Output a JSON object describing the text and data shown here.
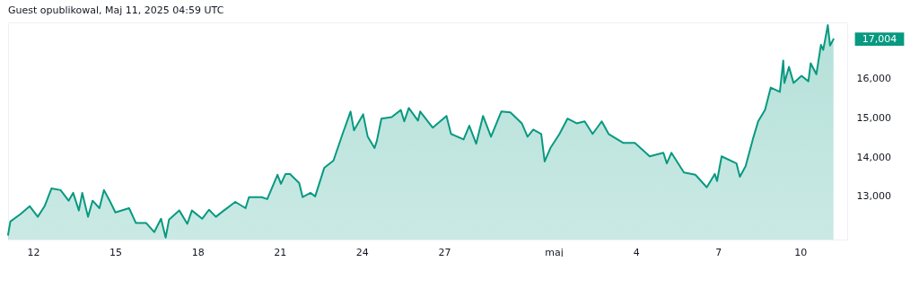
{
  "chart_data": {
    "type": "area",
    "title": "Guest opublikowal, Maj 11, 2025 04:59 UTC",
    "x": [
      "2025-04-11T02:00",
      "2025-04-11T04:00",
      "2025-04-11T13:00",
      "2025-04-11T21:00",
      "2025-04-12T04:00",
      "2025-04-12T10:00",
      "2025-04-12T16:00",
      "2025-04-13T00:00",
      "2025-04-13T07:00",
      "2025-04-13T11:00",
      "2025-04-13T16:00",
      "2025-04-13T19:00",
      "2025-04-14T00:00",
      "2025-04-14T04:00",
      "2025-04-14T10:00",
      "2025-04-14T14:00",
      "2025-04-14T19:00",
      "2025-04-15T00:00",
      "2025-04-15T12:00",
      "2025-04-15T18:00",
      "2025-04-16T03:00",
      "2025-04-16T10:00",
      "2025-04-16T16:00",
      "2025-04-16T20:00",
      "2025-04-16T23:00",
      "2025-04-17T08:00",
      "2025-04-17T15:00",
      "2025-04-17T19:00",
      "2025-04-18T04:00",
      "2025-04-18T10:00",
      "2025-04-18T16:00",
      "2025-04-18T23:00",
      "2025-04-19T09:00",
      "2025-04-19T18:00",
      "2025-04-19T21:00",
      "2025-04-20T08:00",
      "2025-04-20T13:00",
      "2025-04-20T22:00",
      "2025-04-21T01:00",
      "2025-04-21T05:00",
      "2025-04-21T09:00",
      "2025-04-21T17:00",
      "2025-04-21T20:00",
      "2025-04-22T03:00",
      "2025-04-22T07:00",
      "2025-04-22T15:00",
      "2025-04-22T23:00",
      "2025-04-23T07:00",
      "2025-04-23T14:00",
      "2025-04-23T17:00",
      "2025-04-24T01:00",
      "2025-04-24T05:00",
      "2025-04-24T11:00",
      "2025-04-24T13:00",
      "2025-04-24T17:00",
      "2025-04-25T02:00",
      "2025-04-25T10:00",
      "2025-04-25T13:00",
      "2025-04-25T17:00",
      "2025-04-26T01:00",
      "2025-04-26T03:00",
      "2025-04-26T14:00",
      "2025-04-27T02:00",
      "2025-04-27T06:00",
      "2025-04-27T17:00",
      "2025-04-27T22:00",
      "2025-04-28T04:00",
      "2025-04-28T10:00",
      "2025-04-28T17:00",
      "2025-04-29T02:00",
      "2025-04-29T10:00",
      "2025-04-29T20:00",
      "2025-04-30T01:00",
      "2025-04-30T06:00",
      "2025-04-30T13:00",
      "2025-04-30T16:00",
      "2025-04-30T21:00",
      "2025-05-01T05:00",
      "2025-05-01T12:00",
      "2025-05-01T20:00",
      "2025-05-02T03:00",
      "2025-05-02T10:00",
      "2025-05-02T18:00",
      "2025-05-03T00:00",
      "2025-05-03T13:00",
      "2025-05-03T23:00",
      "2025-05-04T12:00",
      "2025-05-05T00:00",
      "2025-05-05T03:00",
      "2025-05-05T07:00",
      "2025-05-05T18:00",
      "2025-05-06T04:00",
      "2025-05-06T14:00",
      "2025-05-06T21:00",
      "2025-05-06T23:00",
      "2025-05-07T03:00",
      "2025-05-07T16:00",
      "2025-05-07T19:00",
      "2025-05-08T00:00",
      "2025-05-08T07:00",
      "2025-05-08T11:00",
      "2025-05-08T17:00",
      "2025-05-08T22:00",
      "2025-05-09T06:00",
      "2025-05-09T09:00",
      "2025-05-09T10:00",
      "2025-05-09T14:00",
      "2025-05-09T18:00",
      "2025-05-10T01:00",
      "2025-05-10T07:00",
      "2025-05-10T09:00",
      "2025-05-10T14:00",
      "2025-05-10T18:00",
      "2025-05-10T20:00",
      "2025-05-11T00:00",
      "2025-05-11T02:00",
      "2025-05-11T05:00"
    ],
    "series": [
      {
        "color": "#089981",
        "values": [
          12020,
          12360,
          12550,
          12750,
          12480,
          12750,
          13200,
          13160,
          12890,
          13090,
          12640,
          13090,
          12480,
          12890,
          12700,
          13160,
          12890,
          12590,
          12700,
          12320,
          12320,
          12090,
          12430,
          11950,
          12410,
          12640,
          12300,
          12640,
          12430,
          12660,
          12480,
          12640,
          12860,
          12700,
          12980,
          12980,
          12930,
          13550,
          13320,
          13570,
          13570,
          13340,
          12980,
          13090,
          13000,
          13730,
          13910,
          14590,
          15160,
          14680,
          15090,
          14520,
          14230,
          14410,
          14980,
          15020,
          15200,
          14910,
          15250,
          14930,
          15160,
          14750,
          15050,
          14590,
          14450,
          14800,
          14340,
          15050,
          14520,
          15160,
          15140,
          14860,
          14520,
          14700,
          14590,
          13890,
          14230,
          14590,
          14980,
          14860,
          14910,
          14590,
          14910,
          14590,
          14360,
          14360,
          14020,
          14110,
          13840,
          14110,
          13610,
          13550,
          13230,
          13570,
          13390,
          14020,
          13840,
          13500,
          13770,
          14520,
          14910,
          15200,
          15770,
          15660,
          16460,
          15890,
          16300,
          15890,
          16070,
          15930,
          16390,
          16110,
          16860,
          16730,
          17360,
          16840,
          17004
        ]
      }
    ],
    "xlim": [
      "2025-04-11T02:00",
      "2025-05-11T17:00"
    ],
    "xticks": [
      {
        "value": "2025-04-12",
        "label": "12"
      },
      {
        "value": "2025-04-15",
        "label": "15"
      },
      {
        "value": "2025-04-18",
        "label": "18"
      },
      {
        "value": "2025-04-21",
        "label": "21"
      },
      {
        "value": "2025-04-24",
        "label": "24"
      },
      {
        "value": "2025-04-27",
        "label": "27"
      },
      {
        "value": "2025-05-01",
        "label": "maj"
      },
      {
        "value": "2025-05-04",
        "label": "4"
      },
      {
        "value": "2025-05-07",
        "label": "7"
      },
      {
        "value": "2025-05-10",
        "label": "10"
      }
    ],
    "ylim": [
      11900,
      17430
    ],
    "yticks": [
      {
        "value": 13000,
        "label": "13,000"
      },
      {
        "value": 14000,
        "label": "14,000"
      },
      {
        "value": 15000,
        "label": "15,000"
      },
      {
        "value": 16000,
        "label": "16,000"
      }
    ],
    "annotations": [
      {
        "text": "17,004",
        "x": "2025-05-11T05:00",
        "y": 17004
      }
    ],
    "grid": false
  }
}
